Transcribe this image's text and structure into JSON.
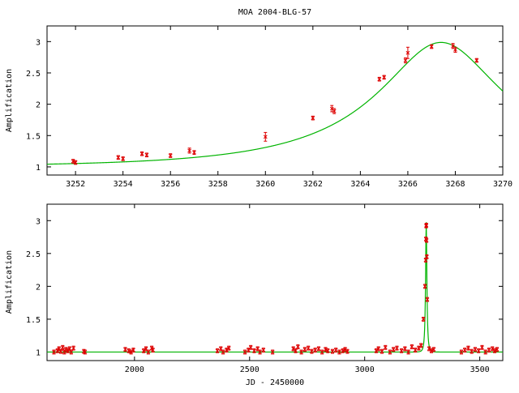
{
  "page": {
    "title": "MOA 2004-BLG-57"
  },
  "colors": {
    "model": "#00b400",
    "data": "#dd0000",
    "axes": "#000000"
  },
  "chart_data": [
    {
      "type": "scatter",
      "title": "MOA 2004-BLG-57",
      "xlabel": "",
      "ylabel": "Amplification",
      "xlim": [
        3250.8,
        3270
      ],
      "ylim": [
        0.87,
        3.25
      ],
      "x_ticks": [
        3252,
        3254,
        3256,
        3258,
        3260,
        3262,
        3264,
        3266,
        3268,
        3270
      ],
      "y_ticks": [
        1,
        1.5,
        2,
        2.5,
        3
      ],
      "x_tick_labels": [
        "3252",
        "3254",
        "3256",
        "3258",
        "3260",
        "3262",
        "3264",
        "3266",
        "3268",
        "3270"
      ],
      "y_tick_labels": [
        "1",
        "1.5",
        "2",
        "2.5",
        "3"
      ],
      "model": {
        "u0": 0.35,
        "t0": 3267.4,
        "tE": 7.5
      },
      "series": [
        {
          "x": [
            3251.9,
            3252.0,
            3253.8,
            3254.0,
            3254.8,
            3255.0,
            3256.0,
            3256.8,
            3257.0,
            3260.0,
            3262.0,
            3262.8,
            3262.9,
            3264.8,
            3265.0,
            3265.9,
            3266.0,
            3267.0,
            3267.9,
            3268.0,
            3268.9
          ],
          "y": [
            1.09,
            1.07,
            1.15,
            1.13,
            1.21,
            1.19,
            1.18,
            1.26,
            1.23,
            1.48,
            1.78,
            1.93,
            1.89,
            2.4,
            2.43,
            2.7,
            2.82,
            2.92,
            2.93,
            2.87,
            2.7
          ],
          "err": [
            0.03,
            0.03,
            0.03,
            0.03,
            0.03,
            0.03,
            0.03,
            0.04,
            0.03,
            0.07,
            0.03,
            0.05,
            0.04,
            0.03,
            0.03,
            0.04,
            0.09,
            0.03,
            0.04,
            0.04,
            0.03
          ]
        }
      ]
    },
    {
      "type": "scatter",
      "title": "",
      "xlabel": "JD - 2450000",
      "ylabel": "Amplification",
      "xlim": [
        1620,
        3600
      ],
      "ylim": [
        0.87,
        3.25
      ],
      "x_ticks": [
        2000,
        2500,
        3000,
        3500
      ],
      "y_ticks": [
        1,
        1.5,
        2,
        2.5,
        3
      ],
      "x_tick_labels": [
        "2000",
        "2500",
        "3000",
        "3500"
      ],
      "y_tick_labels": [
        "1",
        "1.5",
        "2",
        "2.5",
        "3"
      ],
      "model": {
        "u0": 0.35,
        "t0": 3267.4,
        "tE": 7.5
      },
      "series": [
        {
          "x": [
            1650,
            1665,
            1672,
            1680,
            1688,
            1695,
            1702,
            1710,
            1718,
            1725,
            1735,
            1780,
            1785,
            1960,
            1975,
            1985,
            1995,
            2040,
            2050,
            2060,
            2075,
            2080,
            2360,
            2375,
            2385,
            2400,
            2410,
            2480,
            2495,
            2505,
            2520,
            2535,
            2545,
            2560,
            2600,
            2690,
            2700,
            2710,
            2725,
            2740,
            2755,
            2770,
            2785,
            2800,
            2815,
            2830,
            2840,
            2860,
            2875,
            2890,
            2905,
            2915,
            2925,
            3050,
            3060,
            3075,
            3090,
            3110,
            3125,
            3140,
            3160,
            3175,
            3190,
            3205,
            3220,
            3235,
            3245,
            3255,
            3262,
            3265,
            3266,
            3267,
            3268,
            3269,
            3270,
            3272,
            3280,
            3290,
            3300,
            3420,
            3435,
            3450,
            3465,
            3480,
            3495,
            3510,
            3525,
            3540,
            3555,
            3565,
            3575
          ],
          "y": [
            1.0,
            1.02,
            1.05,
            1.01,
            1.07,
            1.0,
            1.04,
            1.02,
            1.05,
            1.0,
            1.06,
            1.01,
            1.0,
            1.04,
            1.02,
            1.0,
            1.03,
            1.02,
            1.05,
            1.0,
            1.06,
            1.03,
            1.02,
            1.05,
            1.0,
            1.03,
            1.06,
            1.0,
            1.03,
            1.07,
            1.02,
            1.05,
            1.0,
            1.03,
            1.0,
            1.05,
            1.02,
            1.08,
            1.0,
            1.04,
            1.06,
            1.01,
            1.03,
            1.05,
            1.0,
            1.04,
            1.02,
            1.01,
            1.03,
            1.0,
            1.02,
            1.04,
            1.01,
            1.02,
            1.05,
            1.01,
            1.07,
            1.0,
            1.04,
            1.06,
            1.02,
            1.05,
            1.0,
            1.08,
            1.03,
            1.06,
            1.1,
            1.5,
            2.0,
            2.4,
            2.72,
            2.92,
            2.93,
            2.7,
            2.45,
            1.8,
            1.05,
            1.02,
            1.04,
            1.0,
            1.03,
            1.06,
            1.01,
            1.04,
            1.02,
            1.07,
            1.0,
            1.03,
            1.05,
            1.02,
            1.04
          ]
        }
      ]
    }
  ]
}
